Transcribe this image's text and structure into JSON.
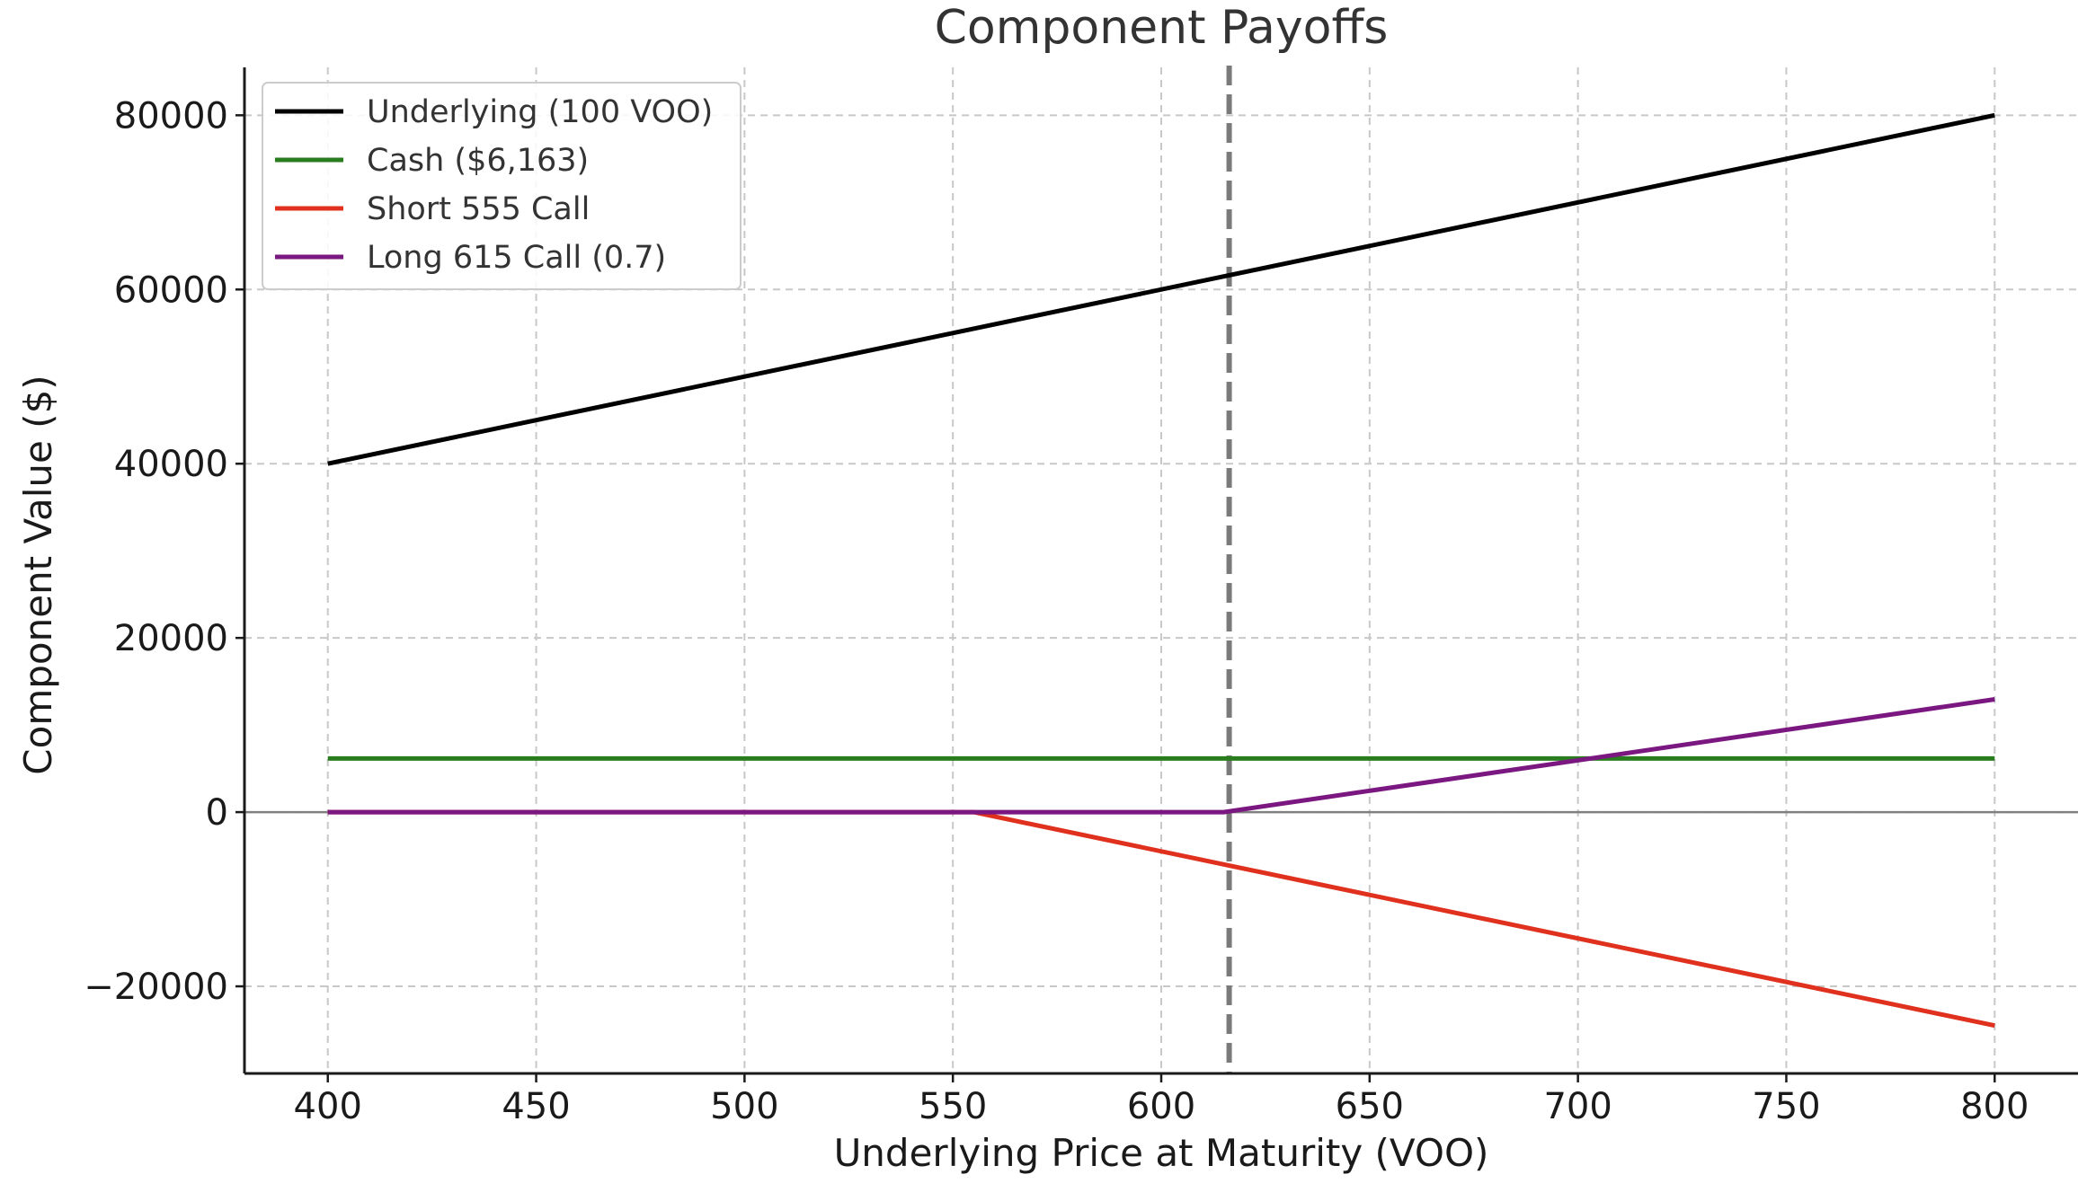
{
  "chart_data": {
    "type": "line",
    "title": "Component Payoffs",
    "xlabel": "Underlying Price at Maturity (VOO)",
    "ylabel": "Component Value ($)",
    "xlim": [
      380,
      820
    ],
    "ylim": [
      -30000,
      85500
    ],
    "x_ticks": [
      400,
      450,
      500,
      550,
      600,
      650,
      700,
      750,
      800
    ],
    "y_ticks": [
      -20000,
      0,
      20000,
      40000,
      60000,
      80000
    ],
    "y_tick_labels": [
      "−20000",
      "0",
      "20000",
      "40000",
      "60000",
      "80000"
    ],
    "grid": true,
    "legend_position": "top-left",
    "vertical_reference_line": {
      "x": 616.3,
      "style": "dashed",
      "color": "#7a7a7a"
    },
    "horizontal_reference_line": {
      "y": 0,
      "color": "#808080"
    },
    "series": [
      {
        "name": "Underlying (100 VOO)",
        "color": "#000000",
        "x": [
          400,
          800
        ],
        "y": [
          40000,
          80000
        ]
      },
      {
        "name": "Cash ($6,163)",
        "color": "#2a7d1f",
        "x": [
          400,
          800
        ],
        "y": [
          6163,
          6163
        ]
      },
      {
        "name": "Short 555 Call",
        "color": "#e0301e",
        "x": [
          400,
          555,
          800
        ],
        "y": [
          0,
          0,
          -24500
        ]
      },
      {
        "name": "Long 615 Call (0.7)",
        "color": "#7b1780",
        "x": [
          400,
          615,
          800
        ],
        "y": [
          0,
          0,
          12950
        ]
      }
    ]
  }
}
